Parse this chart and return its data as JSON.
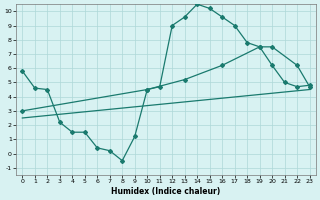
{
  "xlabel": "Humidex (Indice chaleur)",
  "bg_color": "#d8f2f2",
  "grid_color": "#aed8d8",
  "line_color": "#1a7a6e",
  "xlim": [
    -0.5,
    23.5
  ],
  "ylim": [
    -1.5,
    10.5
  ],
  "xticks": [
    0,
    1,
    2,
    3,
    4,
    5,
    6,
    7,
    8,
    9,
    10,
    11,
    12,
    13,
    14,
    15,
    16,
    17,
    18,
    19,
    20,
    21,
    22,
    23
  ],
  "yticks": [
    -1,
    0,
    1,
    2,
    3,
    4,
    5,
    6,
    7,
    8,
    9,
    10
  ],
  "line1_x": [
    0,
    1,
    2,
    3,
    4,
    5,
    6,
    7,
    8,
    9,
    10,
    11,
    12,
    13,
    14,
    15,
    16,
    17,
    18,
    19,
    20,
    21,
    22,
    23
  ],
  "line1_y": [
    5.8,
    4.6,
    4.5,
    2.2,
    1.5,
    1.5,
    0.4,
    0.2,
    -0.5,
    1.2,
    4.5,
    4.7,
    9.0,
    9.6,
    10.5,
    10.2,
    9.6,
    9.0,
    7.8,
    7.5,
    6.2,
    5.0,
    4.7,
    4.8
  ],
  "line2_x": [
    0,
    10,
    13,
    16,
    19,
    20,
    22,
    23
  ],
  "line2_y": [
    3.0,
    4.5,
    5.2,
    6.2,
    7.5,
    7.5,
    6.2,
    4.7
  ],
  "line3_x": [
    0,
    23
  ],
  "line3_y": [
    2.5,
    4.5
  ]
}
